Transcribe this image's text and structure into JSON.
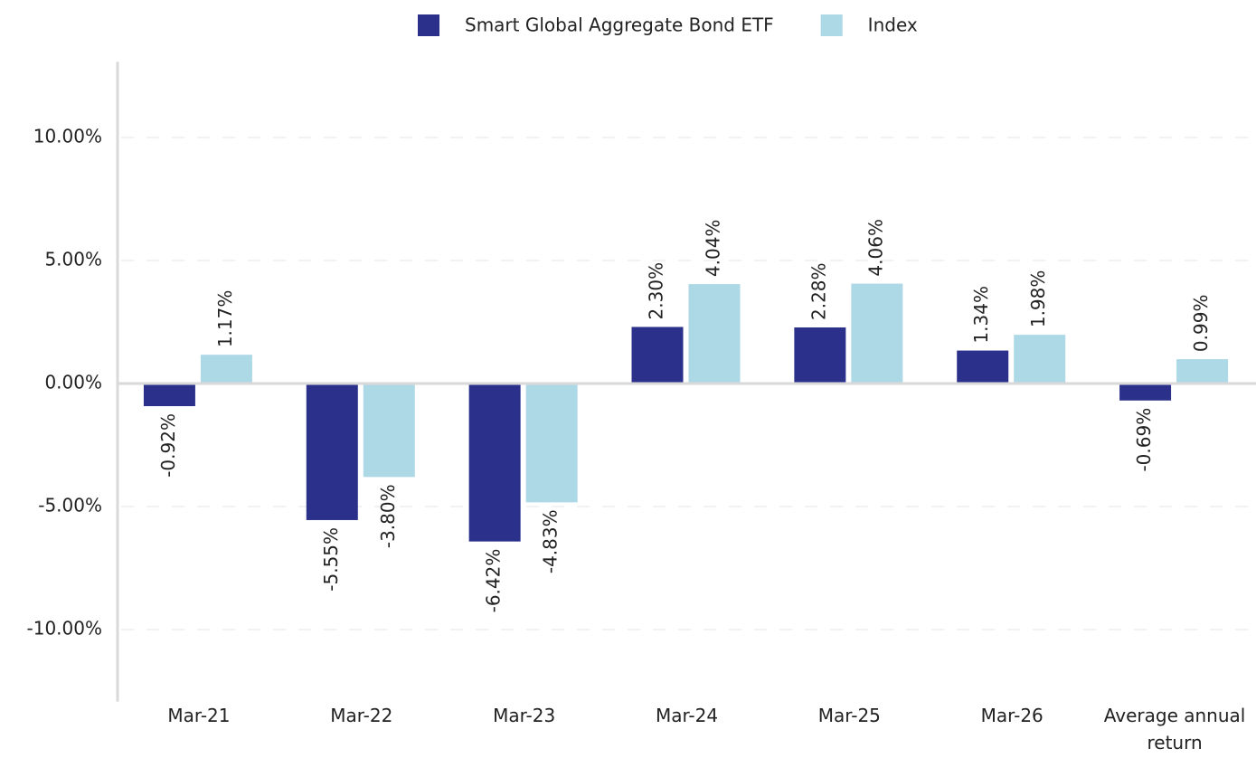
{
  "chart_data": {
    "type": "bar",
    "categories": [
      "Mar-21",
      "Mar-22",
      "Mar-23",
      "Mar-24",
      "Mar-25",
      "Mar-26",
      "Average annual return"
    ],
    "series": [
      {
        "name": "Smart Global Aggregate Bond ETF",
        "color": "#2b318a",
        "values": [
          -0.92,
          -5.55,
          -6.42,
          2.3,
          2.28,
          1.34,
          -0.69
        ],
        "value_labels": [
          "-0.92%",
          "-5.55%",
          "-6.42%",
          "2.30%",
          "2.28%",
          "1.34%",
          "-0.69%"
        ]
      },
      {
        "name": "Index",
        "color": "#add8e6",
        "values": [
          1.17,
          -3.8,
          -4.83,
          4.04,
          4.06,
          1.98,
          0.99
        ],
        "value_labels": [
          "1.17%",
          "-3.80%",
          "-4.83%",
          "4.04%",
          "4.06%",
          "1.98%",
          "0.99%"
        ]
      }
    ],
    "ylim": [
      -13,
      13
    ],
    "yticks": [
      {
        "value": -10,
        "label": "-10.00%"
      },
      {
        "value": -5,
        "label": "-5.00%"
      },
      {
        "value": 0,
        "label": "0.00%"
      },
      {
        "value": 5,
        "label": "5.00%"
      },
      {
        "value": 10,
        "label": "10.00%"
      }
    ],
    "grid": true,
    "legend": "top"
  }
}
